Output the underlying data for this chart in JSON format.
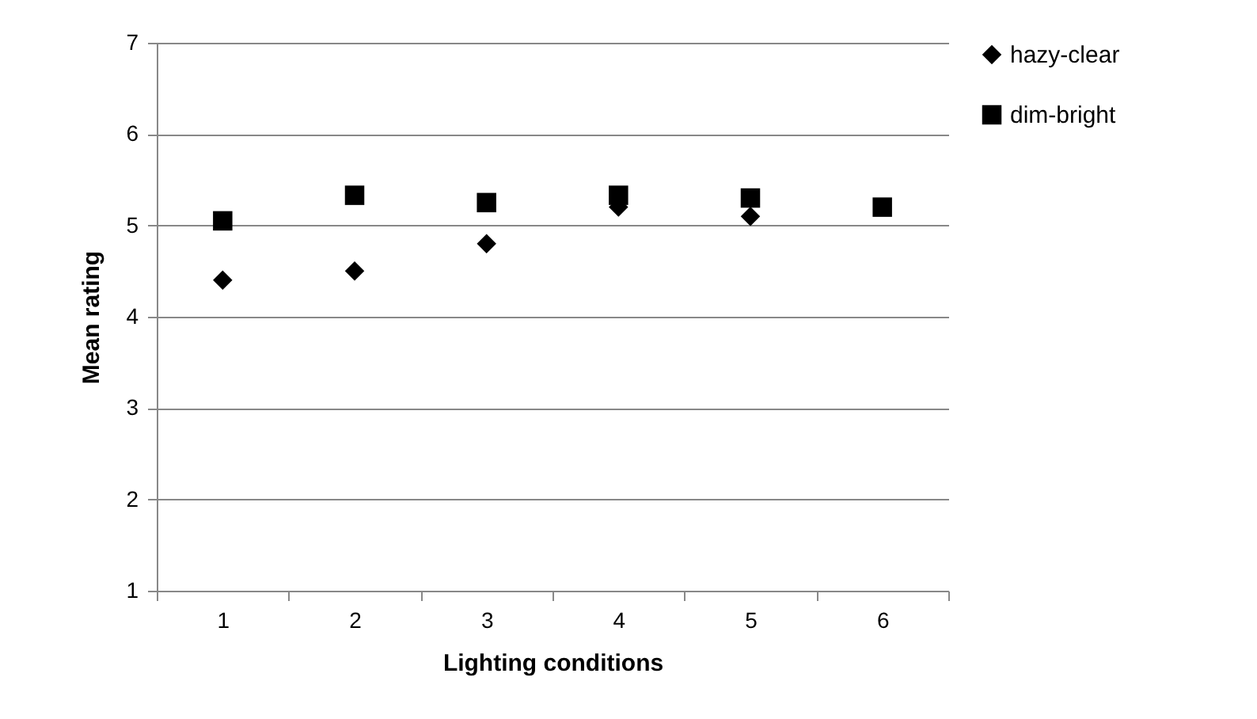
{
  "chart_data": {
    "type": "scatter",
    "xlabel": "Lighting conditions",
    "ylabel": "Mean rating",
    "categories": [
      "1",
      "2",
      "3",
      "4",
      "5",
      "6"
    ],
    "series": [
      {
        "name": "hazy-clear",
        "color": "#000000",
        "marker": "diamond",
        "values": [
          4.4,
          4.5,
          4.8,
          5.2,
          5.1,
          null
        ]
      },
      {
        "name": "dim-bright",
        "color": "#000000",
        "marker": "square",
        "values": [
          5.05,
          5.33,
          5.25,
          5.33,
          5.3,
          5.2
        ]
      }
    ],
    "ylim": [
      1,
      7
    ],
    "yticks": [
      1,
      2,
      3,
      4,
      5,
      6,
      7
    ],
    "grid": "y",
    "legend": "right"
  }
}
